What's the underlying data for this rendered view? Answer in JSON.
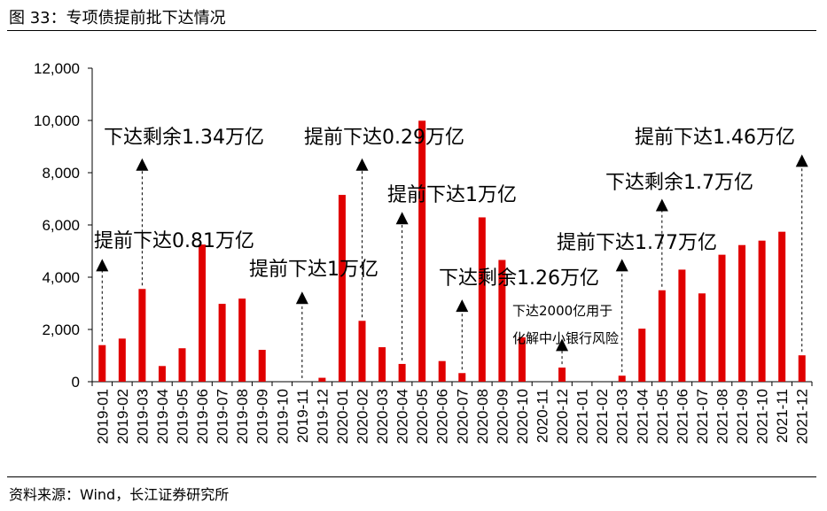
{
  "figure": {
    "title": "图 33：专项债提前批下达情况",
    "source": "资料来源：Wind，长江证券研究所"
  },
  "chart_data": {
    "type": "bar",
    "color": "#E00000",
    "ylim": [
      0,
      12000
    ],
    "yticks": [
      "0",
      "2,000",
      "4,000",
      "6,000",
      "8,000",
      "10,000",
      "12,000"
    ],
    "ytick_values": [
      0,
      2000,
      4000,
      6000,
      8000,
      10000,
      12000
    ],
    "categories": [
      "2019-01",
      "2019-02",
      "2019-03",
      "2019-04",
      "2019-05",
      "2019-06",
      "2019-07",
      "2019-08",
      "2019-09",
      "2019-10",
      "2019-11",
      "2019-12",
      "2020-01",
      "2020-02",
      "2020-03",
      "2020-04",
      "2020-05",
      "2020-06",
      "2020-07",
      "2020-08",
      "2020-09",
      "2020-10",
      "2020-11",
      "2020-12",
      "2021-01",
      "2021-02",
      "2021-03",
      "2021-04",
      "2021-05",
      "2021-06",
      "2021-07",
      "2021-08",
      "2021-09",
      "2021-10",
      "2021-11",
      "2021-12"
    ],
    "values": [
      1400,
      1650,
      3550,
      600,
      1280,
      5250,
      2980,
      3180,
      1220,
      0,
      0,
      150,
      7150,
      2330,
      1320,
      680,
      9990,
      790,
      330,
      6290,
      4660,
      1700,
      0,
      540,
      0,
      0,
      230,
      2030,
      3500,
      4290,
      3380,
      4860,
      5230,
      5400,
      5740,
      1010
    ],
    "annotations": [
      {
        "text": "提前下达0.81万亿",
        "index": 0,
        "tip": 4700,
        "text_size": 22
      },
      {
        "text": "下达剩余1.34万亿",
        "index": 2,
        "tip": 8550,
        "text_size": 22
      },
      {
        "text": "提前下达1万亿",
        "index": 10,
        "tip": 3450,
        "text_size": 22
      },
      {
        "text": "提前下达0.29万亿",
        "index": 13,
        "tip": 8550,
        "text_size": 22
      },
      {
        "text": "提前下达1万亿",
        "index": 15,
        "tip": 6500,
        "text_size": 22
      },
      {
        "text": "下达剩余1.26万亿",
        "index": 18,
        "tip": 3150,
        "text_size": 22
      },
      {
        "text": "下达2000亿用于",
        "index": 23,
        "tip": 1650,
        "text_size": 15
      },
      {
        "text": "化解中小银行风险",
        "index": 23,
        "tip": null,
        "text_size": 15
      },
      {
        "text": "提前下达1.77万亿",
        "index": 26,
        "tip": 4700,
        "text_size": 22
      },
      {
        "text": "下达剩余1.7万亿",
        "index": 28,
        "tip": 7000,
        "text_size": 22
      },
      {
        "text": "提前下达1.46万亿",
        "index": 35,
        "tip": 8700,
        "text_size": 22
      }
    ]
  }
}
